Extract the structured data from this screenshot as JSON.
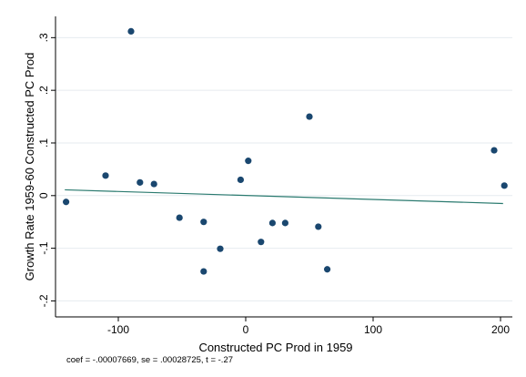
{
  "chart_data": {
    "type": "scatter",
    "xlabel": "Constructed PC Prod in 1959",
    "ylabel": "Growth Rate 1959-60 Constructed PC Prod",
    "note": "coef = -.00007669, se = .00028725, t = -.27",
    "xlim": [
      -145,
      205
    ],
    "ylim": [
      -0.22,
      0.33
    ],
    "x_ticks": [
      {
        "value": -100,
        "label": "-100"
      },
      {
        "value": 0,
        "label": "0"
      },
      {
        "value": 100,
        "label": "100"
      },
      {
        "value": 200,
        "label": "200"
      }
    ],
    "y_ticks": [
      {
        "value": -0.2,
        "label": "-.2"
      },
      {
        "value": -0.1,
        "label": "-.1"
      },
      {
        "value": 0,
        "label": "0"
      },
      {
        "value": 0.1,
        "label": ".1"
      },
      {
        "value": 0.2,
        "label": ".2"
      },
      {
        "value": 0.3,
        "label": ".3"
      }
    ],
    "grid": true,
    "points": [
      {
        "x": -141,
        "y": -0.012
      },
      {
        "x": -110,
        "y": 0.038
      },
      {
        "x": -90,
        "y": 0.312
      },
      {
        "x": -83,
        "y": 0.025
      },
      {
        "x": -72,
        "y": 0.022
      },
      {
        "x": -52,
        "y": -0.042
      },
      {
        "x": -33,
        "y": -0.05
      },
      {
        "x": -33,
        "y": -0.144
      },
      {
        "x": -20,
        "y": -0.101
      },
      {
        "x": -4,
        "y": 0.03
      },
      {
        "x": 2,
        "y": 0.066
      },
      {
        "x": 12,
        "y": -0.088
      },
      {
        "x": 21,
        "y": -0.052
      },
      {
        "x": 31,
        "y": -0.052
      },
      {
        "x": 50,
        "y": 0.15
      },
      {
        "x": 57,
        "y": -0.059
      },
      {
        "x": 64,
        "y": -0.14
      },
      {
        "x": 195,
        "y": 0.086
      },
      {
        "x": 203,
        "y": 0.019
      }
    ],
    "fit_line": {
      "x": [
        -142,
        202
      ],
      "y": [
        0.011,
        -0.015
      ]
    },
    "colors": {
      "points": "#1a476f",
      "fit_line": "#2a7a6f",
      "grid": "#e6ebef",
      "axis": "#000000"
    }
  }
}
